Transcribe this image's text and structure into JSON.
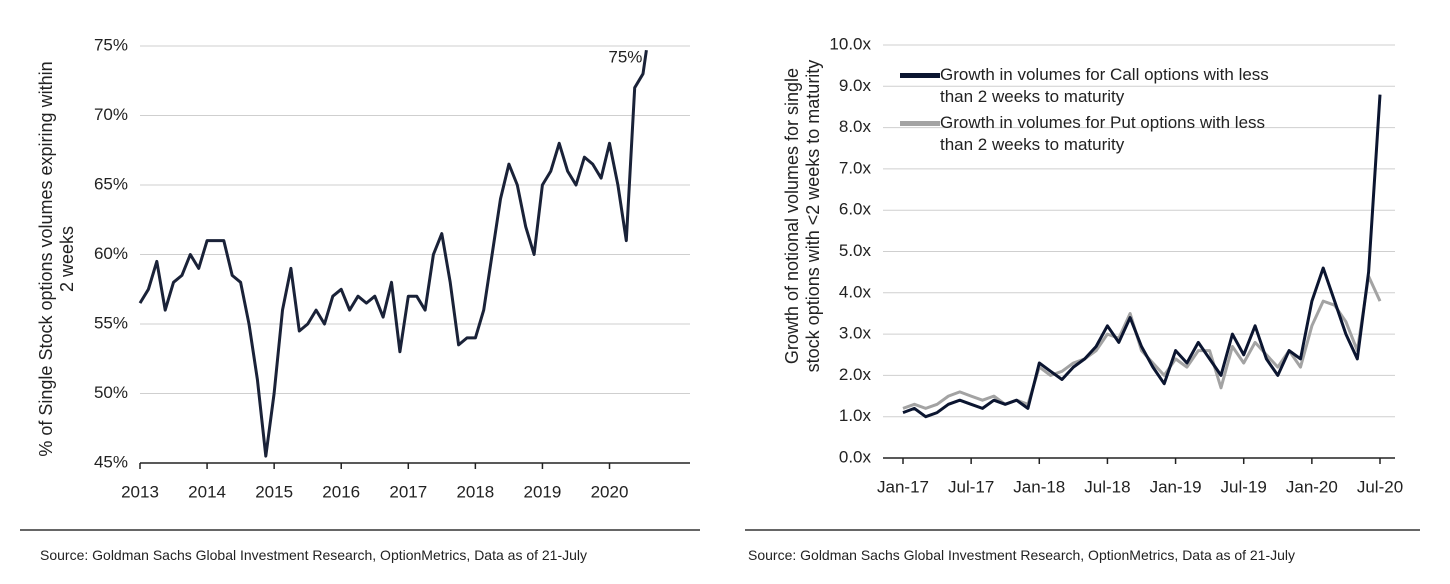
{
  "chart_data": [
    {
      "type": "line",
      "ylabel": "% of Single Stock options volumes expiring within 2 weeks",
      "annotation": "75%",
      "source": "Source: Goldman Sachs Global Investment Research, OptionMetrics, Data as of 21-July",
      "x": [
        2013,
        2013.125,
        2013.25,
        2013.375,
        2013.5,
        2013.625,
        2013.75,
        2013.875,
        2014,
        2014.125,
        2014.25,
        2014.375,
        2014.5,
        2014.625,
        2014.75,
        2014.875,
        2015,
        2015.125,
        2015.25,
        2015.375,
        2015.5,
        2015.625,
        2015.75,
        2015.875,
        2016,
        2016.125,
        2016.25,
        2016.375,
        2016.5,
        2016.625,
        2016.75,
        2016.875,
        2017,
        2017.125,
        2017.25,
        2017.375,
        2017.5,
        2017.625,
        2017.75,
        2017.875,
        2018,
        2018.125,
        2018.25,
        2018.375,
        2018.5,
        2018.625,
        2018.75,
        2018.875,
        2019,
        2019.125,
        2019.25,
        2019.375,
        2019.5,
        2019.625,
        2019.75,
        2019.875,
        2020,
        2020.125,
        2020.25,
        2020.375,
        2020.5,
        2020.55
      ],
      "series": [
        {
          "color": "#1a2238",
          "values": [
            56.5,
            57.5,
            59.5,
            56,
            58,
            58.5,
            60,
            59,
            61,
            61,
            61,
            58.5,
            58,
            55,
            51,
            45.5,
            50,
            56,
            59,
            54.5,
            55,
            56,
            55,
            57,
            57.5,
            56,
            57,
            56.5,
            57,
            55.5,
            58,
            53,
            57,
            57,
            56,
            60,
            61.5,
            58,
            53.5,
            54,
            54,
            56,
            60,
            64,
            66.5,
            65,
            62,
            60,
            65,
            66,
            68,
            66,
            65,
            67,
            66.5,
            65.5,
            68,
            65,
            61,
            72,
            73,
            74.7
          ]
        }
      ],
      "xlim": [
        2013,
        2021.2
      ],
      "xticks": [
        2013,
        2014,
        2015,
        2016,
        2017,
        2018,
        2019,
        2020
      ],
      "ylim": [
        45,
        75
      ],
      "yticks": [
        {
          "value": 45,
          "label": "45%"
        },
        {
          "value": 50,
          "label": "50%"
        },
        {
          "value": 55,
          "label": "55%"
        },
        {
          "value": 60,
          "label": "60%"
        },
        {
          "value": 65,
          "label": "65%"
        },
        {
          "value": 70,
          "label": "70%"
        },
        {
          "value": 75,
          "label": "75%"
        }
      ],
      "grid": true
    },
    {
      "type": "line",
      "ylabel": "Growth of notional volumes for single stock options with <2 weeks to maturity",
      "source": "Source: Goldman Sachs Global Investment Research, OptionMetrics, Data as of 21-July",
      "categories": [
        "Jan-17",
        null,
        null,
        null,
        null,
        null,
        "Jul-17",
        null,
        null,
        null,
        null,
        null,
        "Jan-18",
        null,
        null,
        null,
        null,
        null,
        "Jul-18",
        null,
        null,
        null,
        null,
        null,
        "Jan-19",
        null,
        null,
        null,
        null,
        null,
        "Jul-19",
        null,
        null,
        null,
        null,
        null,
        "Jan-20",
        null,
        null,
        null,
        null,
        null,
        "Jul-20"
      ],
      "series": [
        {
          "name": "Growth in volumes for Call options with less than 2 weeks to maturity",
          "color": "#0b1530",
          "values": [
            1.1,
            1.2,
            1.0,
            1.1,
            1.3,
            1.4,
            1.3,
            1.2,
            1.4,
            1.3,
            1.4,
            1.2,
            2.3,
            2.1,
            1.9,
            2.2,
            2.4,
            2.7,
            3.2,
            2.8,
            3.4,
            2.7,
            2.2,
            1.8,
            2.6,
            2.3,
            2.8,
            2.4,
            2.0,
            3.0,
            2.5,
            3.2,
            2.4,
            2.0,
            2.6,
            2.4,
            3.8,
            4.6,
            3.8,
            3.0,
            2.4,
            4.5,
            8.8
          ]
        },
        {
          "name": "Growth in volumes for Put options with less than 2 weeks to maturity",
          "color": "#a3a3a3",
          "values": [
            1.2,
            1.3,
            1.2,
            1.3,
            1.5,
            1.6,
            1.5,
            1.4,
            1.5,
            1.3,
            1.4,
            1.3,
            2.2,
            2.0,
            2.1,
            2.3,
            2.4,
            2.6,
            3.0,
            2.9,
            3.5,
            2.6,
            2.3,
            2.0,
            2.4,
            2.2,
            2.6,
            2.6,
            1.7,
            2.7,
            2.3,
            2.8,
            2.5,
            2.2,
            2.6,
            2.2,
            3.2,
            3.8,
            3.7,
            3.3,
            2.6,
            4.4,
            3.8
          ]
        }
      ],
      "ylim": [
        0,
        10
      ],
      "yticks": [
        {
          "value": 0,
          "label": "0.0x"
        },
        {
          "value": 1,
          "label": "1.0x"
        },
        {
          "value": 2,
          "label": "2.0x"
        },
        {
          "value": 3,
          "label": "3.0x"
        },
        {
          "value": 4,
          "label": "4.0x"
        },
        {
          "value": 5,
          "label": "5.0x"
        },
        {
          "value": 6,
          "label": "6.0x"
        },
        {
          "value": 7,
          "label": "7.0x"
        },
        {
          "value": 8,
          "label": "8.0x"
        },
        {
          "value": 9,
          "label": "9.0x"
        },
        {
          "value": 10,
          "label": "10.0x"
        }
      ],
      "grid": true,
      "legend": "top-left"
    }
  ]
}
